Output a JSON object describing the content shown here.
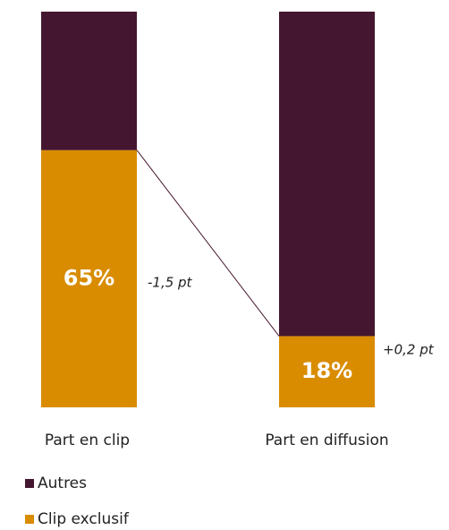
{
  "chart_data": {
    "type": "stacked_bar",
    "categories": [
      "Part en clip",
      "Part en diffusion"
    ],
    "series": [
      {
        "name": "Clip exclusif",
        "color": "#d98c00",
        "values": [
          65,
          18
        ],
        "value_labels": [
          "65%",
          "18%"
        ]
      },
      {
        "name": "Autres",
        "color": "#45162f",
        "values": [
          35,
          82
        ]
      }
    ],
    "annotations": [
      "-1,5 pt",
      "+0,2 pt"
    ],
    "connector_color": "#45162f"
  }
}
